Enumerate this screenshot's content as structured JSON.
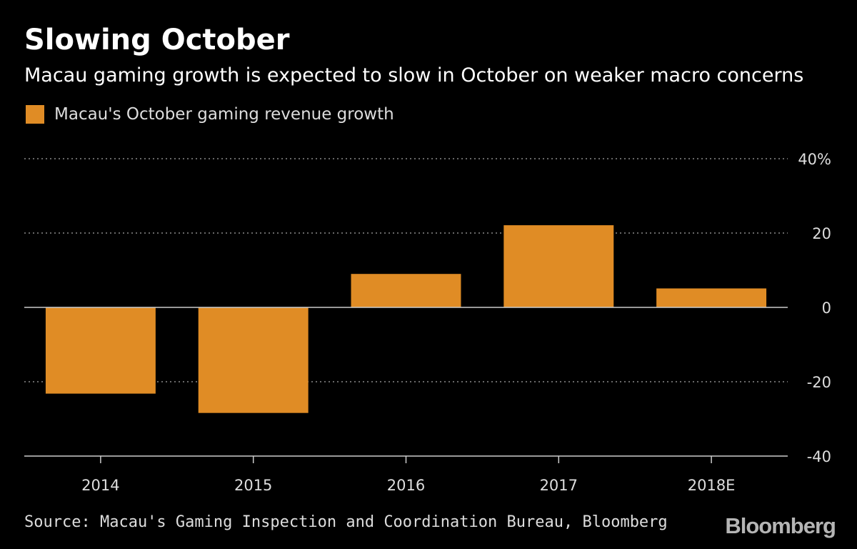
{
  "chart_data": {
    "type": "bar",
    "title": "Slowing October",
    "subtitle": "Macau gaming growth is expected to slow in October on weaker macro concerns",
    "categories": [
      "2014",
      "2015",
      "2016",
      "2017",
      "2018E"
    ],
    "series": [
      {
        "name": "Macau's October gaming revenue growth",
        "values": [
          -23.2,
          -28.4,
          9.0,
          22.1,
          5.1
        ],
        "color": "#e08c25"
      }
    ],
    "xlabel": "",
    "ylabel": "",
    "ylim": [
      -40,
      40
    ],
    "yticks": [
      {
        "value": 40,
        "label": "40%"
      },
      {
        "value": 20,
        "label": "20"
      },
      {
        "value": 0,
        "label": "0"
      },
      {
        "value": -20,
        "label": "-20"
      },
      {
        "value": -40,
        "label": "-40"
      }
    ],
    "grid": true,
    "legend_position": "top-left"
  },
  "footer": {
    "source": "Source: Macau's Gaming Inspection and Coordination Bureau, Bloomberg",
    "brand": "Bloomberg"
  },
  "colors": {
    "background": "#000000",
    "bar": "#e08c25",
    "grid": "#8a8a8a",
    "axis": "#cccccc",
    "text": "#ffffff",
    "muted_text": "#dddddd"
  }
}
